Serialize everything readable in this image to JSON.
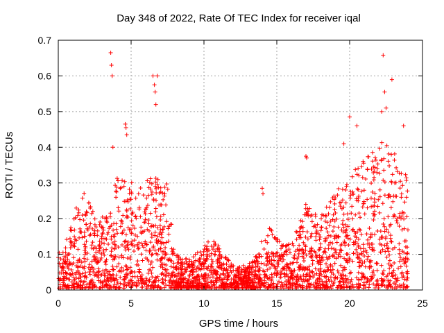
{
  "chart_data": {
    "type": "scatter",
    "title": "Day 348 of 2022, Rate Of TEC Index for receiver iqal",
    "xlabel": "GPS time / hours",
    "ylabel": "ROTI / TECUs",
    "xlim": [
      0,
      25
    ],
    "ylim": [
      0,
      0.7
    ],
    "xticks": [
      "0",
      "5",
      "10",
      "15",
      "20",
      "25"
    ],
    "yticks": [
      "0",
      "0.1",
      "0.2",
      "0.3",
      "0.4",
      "0.5",
      "0.6",
      "0.7"
    ],
    "grid": true,
    "marker": "+",
    "color": "#ff0000",
    "envelope": {
      "description": "approximate upper envelope of the dense ROTI point cloud (hours, TECUs)",
      "x": [
        0,
        0.5,
        1.0,
        1.5,
        2.0,
        2.5,
        3.0,
        3.5,
        4.0,
        4.5,
        5.0,
        5.5,
        6.0,
        6.5,
        7.0,
        7.5,
        8.0,
        8.5,
        9.0,
        9.5,
        10.0,
        10.5,
        11.0,
        11.5,
        12.0,
        12.5,
        13.0,
        13.5,
        14.0,
        14.5,
        15.0,
        15.5,
        16.0,
        16.5,
        17.0,
        17.5,
        18.0,
        18.5,
        19.0,
        19.5,
        20.0,
        20.5,
        21.0,
        21.5,
        22.0,
        22.5,
        23.0,
        23.5,
        24.0
      ],
      "y": [
        0.1,
        0.14,
        0.2,
        0.26,
        0.28,
        0.2,
        0.22,
        0.2,
        0.32,
        0.3,
        0.3,
        0.28,
        0.3,
        0.32,
        0.3,
        0.3,
        0.1,
        0.08,
        0.09,
        0.1,
        0.12,
        0.14,
        0.12,
        0.09,
        0.07,
        0.06,
        0.07,
        0.09,
        0.14,
        0.17,
        0.14,
        0.13,
        0.12,
        0.18,
        0.24,
        0.22,
        0.2,
        0.24,
        0.28,
        0.3,
        0.32,
        0.34,
        0.36,
        0.38,
        0.4,
        0.42,
        0.38,
        0.36,
        0.3
      ]
    },
    "outliers": {
      "x": [
        3.6,
        3.65,
        3.7,
        3.75,
        4.6,
        4.65,
        4.7,
        6.5,
        6.6,
        6.65,
        6.7,
        6.8,
        22.3,
        22.4,
        22.5,
        22.9,
        22.2,
        23.7,
        20.0,
        20.5,
        19.6,
        17.0,
        17.05,
        14.0,
        14.05
      ],
      "y": [
        0.665,
        0.63,
        0.6,
        0.4,
        0.465,
        0.455,
        0.435,
        0.6,
        0.575,
        0.555,
        0.52,
        0.6,
        0.658,
        0.555,
        0.51,
        0.59,
        0.5,
        0.46,
        0.485,
        0.46,
        0.41,
        0.375,
        0.37,
        0.285,
        0.27
      ]
    }
  }
}
